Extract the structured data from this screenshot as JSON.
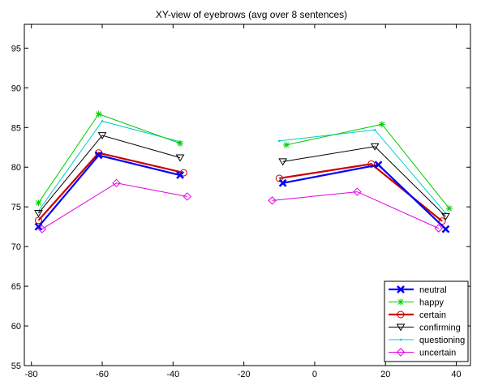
{
  "chart_data": {
    "type": "line",
    "title": "XY-view of eyebrows (avg over 8 sentences)",
    "xlabel": "",
    "ylabel": "",
    "xlim": [
      -82,
      44
    ],
    "ylim": [
      55,
      98
    ],
    "xticks": [
      -80,
      -60,
      -40,
      -20,
      0,
      20,
      40
    ],
    "yticks": [
      55,
      60,
      65,
      70,
      75,
      80,
      85,
      90,
      95
    ],
    "grid": false,
    "legend_position": "bottom-right",
    "series": [
      {
        "name": "neutral",
        "color": "#0000ff",
        "marker": "x",
        "bold": true,
        "segments": [
          [
            [
              -78,
              72.5
            ],
            [
              -61,
              81.5
            ],
            [
              -38,
              79
            ]
          ],
          [
            [
              -9,
              78
            ],
            [
              18,
              80.3
            ],
            [
              37,
              72.2
            ]
          ]
        ]
      },
      {
        "name": "happy",
        "color": "#00cc00",
        "marker": "*",
        "bold": false,
        "segments": [
          [
            [
              -78,
              75.5
            ],
            [
              -61,
              86.7
            ],
            [
              -38,
              83
            ]
          ],
          [
            [
              -8,
              82.8
            ],
            [
              19,
              85.4
            ],
            [
              38,
              74.8
            ]
          ]
        ]
      },
      {
        "name": "certain",
        "color": "#cc0000",
        "marker": "o",
        "bold": true,
        "segments": [
          [
            [
              -78,
              73.3
            ],
            [
              -61,
              81.8
            ],
            [
              -37,
              79.3
            ]
          ],
          [
            [
              -10,
              78.6
            ],
            [
              16,
              80.4
            ],
            [
              36,
              73.2
            ]
          ]
        ]
      },
      {
        "name": "confirming",
        "color": "#000000",
        "marker": "v",
        "bold": false,
        "segments": [
          [
            [
              -78,
              74.2
            ],
            [
              -60,
              84
            ],
            [
              -38,
              81.2
            ]
          ],
          [
            [
              -9,
              80.7
            ],
            [
              17,
              82.6
            ],
            [
              37,
              73.8
            ]
          ]
        ]
      },
      {
        "name": "questioning",
        "color": "#00cccc",
        "marker": ".",
        "bold": false,
        "segments": [
          [
            [
              -78,
              74.5
            ],
            [
              -60,
              85.8
            ],
            [
              -38,
              83.2
            ]
          ],
          [
            [
              -10,
              83.3
            ],
            [
              17,
              84.7
            ],
            [
              37,
              74.2
            ]
          ]
        ]
      },
      {
        "name": "uncertain",
        "color": "#e000e0",
        "marker": "d",
        "bold": false,
        "segments": [
          [
            [
              -77,
              72.2
            ],
            [
              -56,
              78
            ],
            [
              -36,
              76.3
            ]
          ],
          [
            [
              -12,
              75.8
            ],
            [
              12,
              76.9
            ],
            [
              35,
              72.3
            ]
          ]
        ]
      }
    ]
  }
}
